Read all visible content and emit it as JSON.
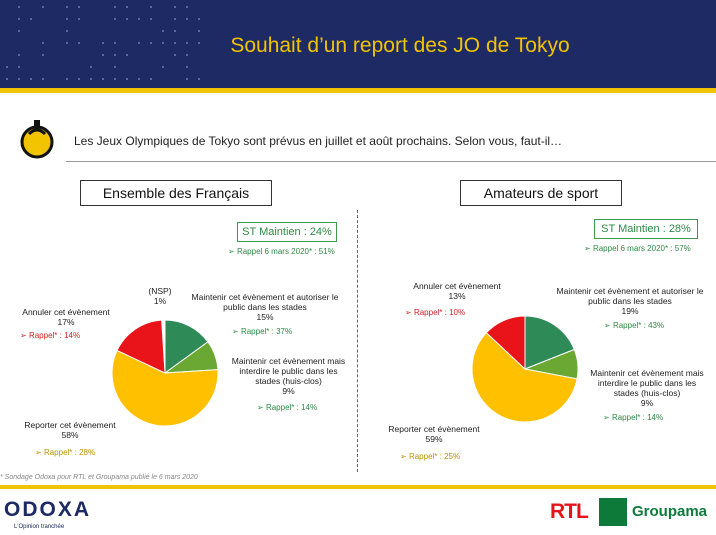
{
  "title": "Souhait d’un report des JO de Tokyo",
  "question": "Les Jeux Olympiques de Tokyo sont prévus en juillet et août prochains. Selon vous, faut-il…",
  "footnote": "* Sondage Odoxa pour RTL et Groupama publié le 6 mars 2020",
  "branding": {
    "odoxa": "ODOXA",
    "odoxa_tagline": "L'Opinion tranchée",
    "rtl": "RTL",
    "groupama": "Groupama"
  },
  "colors": {
    "header": "#1d2a63",
    "accent": "#f2c400",
    "green_dark": "#2e8b57",
    "green_light": "#6aa833",
    "yellow": "#ffc000",
    "red": "#e8141a",
    "white": "#ffffff"
  },
  "chart_data": [
    {
      "type": "pie",
      "title": "Ensemble des Français",
      "st_label": "ST Maintien : 24%",
      "st_rappel": "Rappel 6 mars 2020* : 51%",
      "slices": [
        {
          "label": "(NSP)",
          "value": 1,
          "value_text": "1%",
          "color": "#ffffff",
          "rappel": ""
        },
        {
          "label": "Maintenir cet évènement et autoriser le public dans les stades",
          "value": 15,
          "value_text": "15%",
          "color": "#2e8b57",
          "rappel": "Rappel* : 37%"
        },
        {
          "label": "Maintenir cet évènement mais interdire le public dans les stades (huis-clos)",
          "value": 9,
          "value_text": "9%",
          "color": "#6aa833",
          "rappel": "Rappel* : 14%"
        },
        {
          "label": "Reporter cet évènement",
          "value": 58,
          "value_text": "58%",
          "color": "#ffc000",
          "rappel": "Rappel* : 28%"
        },
        {
          "label": "Annuler cet évènement",
          "value": 17,
          "value_text": "17%",
          "color": "#e8141a",
          "rappel": "Rappel* : 14%"
        }
      ]
    },
    {
      "type": "pie",
      "title": "Amateurs de sport",
      "st_label": "ST Maintien : 28%",
      "st_rappel": "Rappel 6 mars 2020* : 57%",
      "slices": [
        {
          "label": "Maintenir cet évènement et autoriser le public dans les stades",
          "value": 19,
          "value_text": "19%",
          "color": "#2e8b57",
          "rappel": "Rappel* : 43%"
        },
        {
          "label": "Maintenir cet évènement mais interdire le public dans les stades (huis-clos)",
          "value": 9,
          "value_text": "9%",
          "color": "#6aa833",
          "rappel": "Rappel* : 14%"
        },
        {
          "label": "Reporter cet évènement",
          "value": 59,
          "value_text": "59%",
          "color": "#ffc000",
          "rappel": "Rappel* : 25%"
        },
        {
          "label": "Annuler cet évènement",
          "value": 13,
          "value_text": "13%",
          "color": "#e8141a",
          "rappel": "Rappel* : 10%"
        }
      ]
    }
  ]
}
